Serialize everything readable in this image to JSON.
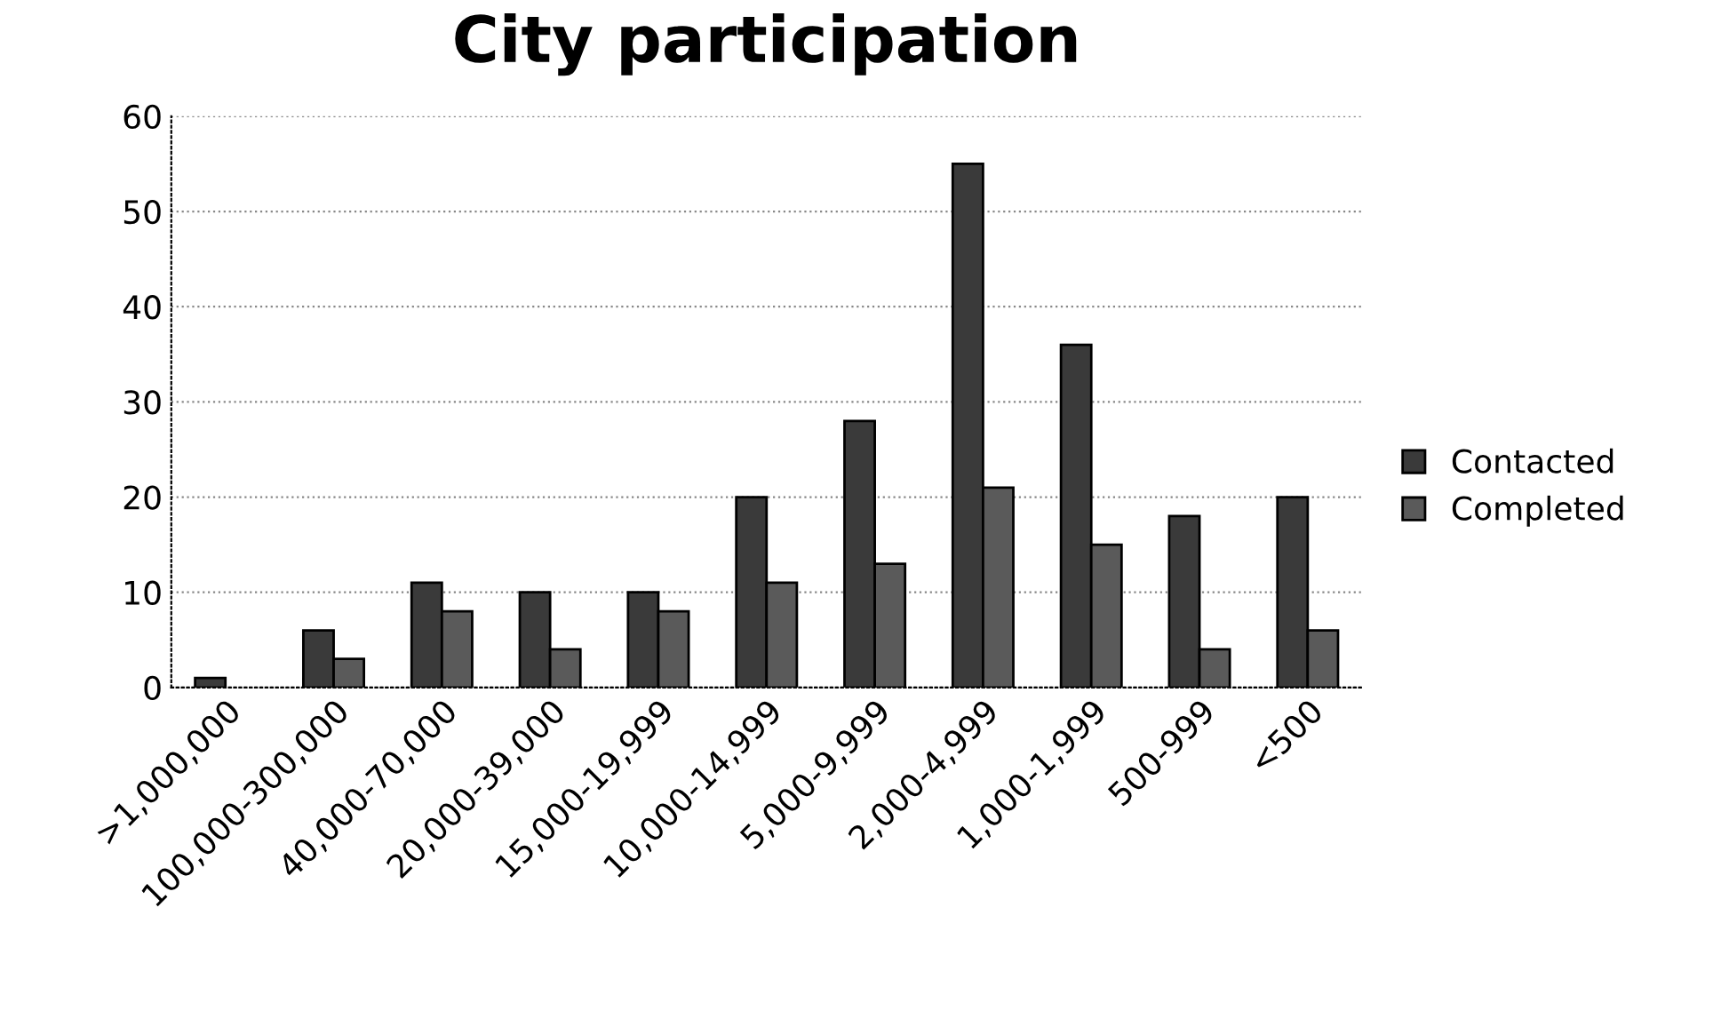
{
  "chart_data": {
    "type": "bar",
    "title": "City participation",
    "categories": [
      ">1,000,000",
      "100,000-300,000",
      "40,000-70,000",
      "20,000-39,000",
      "15,000-19,999",
      "10,000-14,999",
      "5,000-9,999",
      "2,000-4,999",
      "1,000-1,999",
      "500-999",
      "<500"
    ],
    "series": [
      {
        "name": "Contacted",
        "color": "#3a3a3a",
        "values": [
          1,
          6,
          11,
          10,
          10,
          20,
          28,
          55,
          36,
          18,
          20
        ]
      },
      {
        "name": "Completed",
        "color": "#5a5a5a",
        "values": [
          null,
          3,
          8,
          4,
          8,
          11,
          13,
          21,
          15,
          4,
          6
        ]
      }
    ],
    "ylim": [
      0,
      60
    ],
    "yticks": [
      0,
      10,
      20,
      30,
      40,
      50,
      60
    ],
    "grid": "y",
    "legend": "right"
  }
}
